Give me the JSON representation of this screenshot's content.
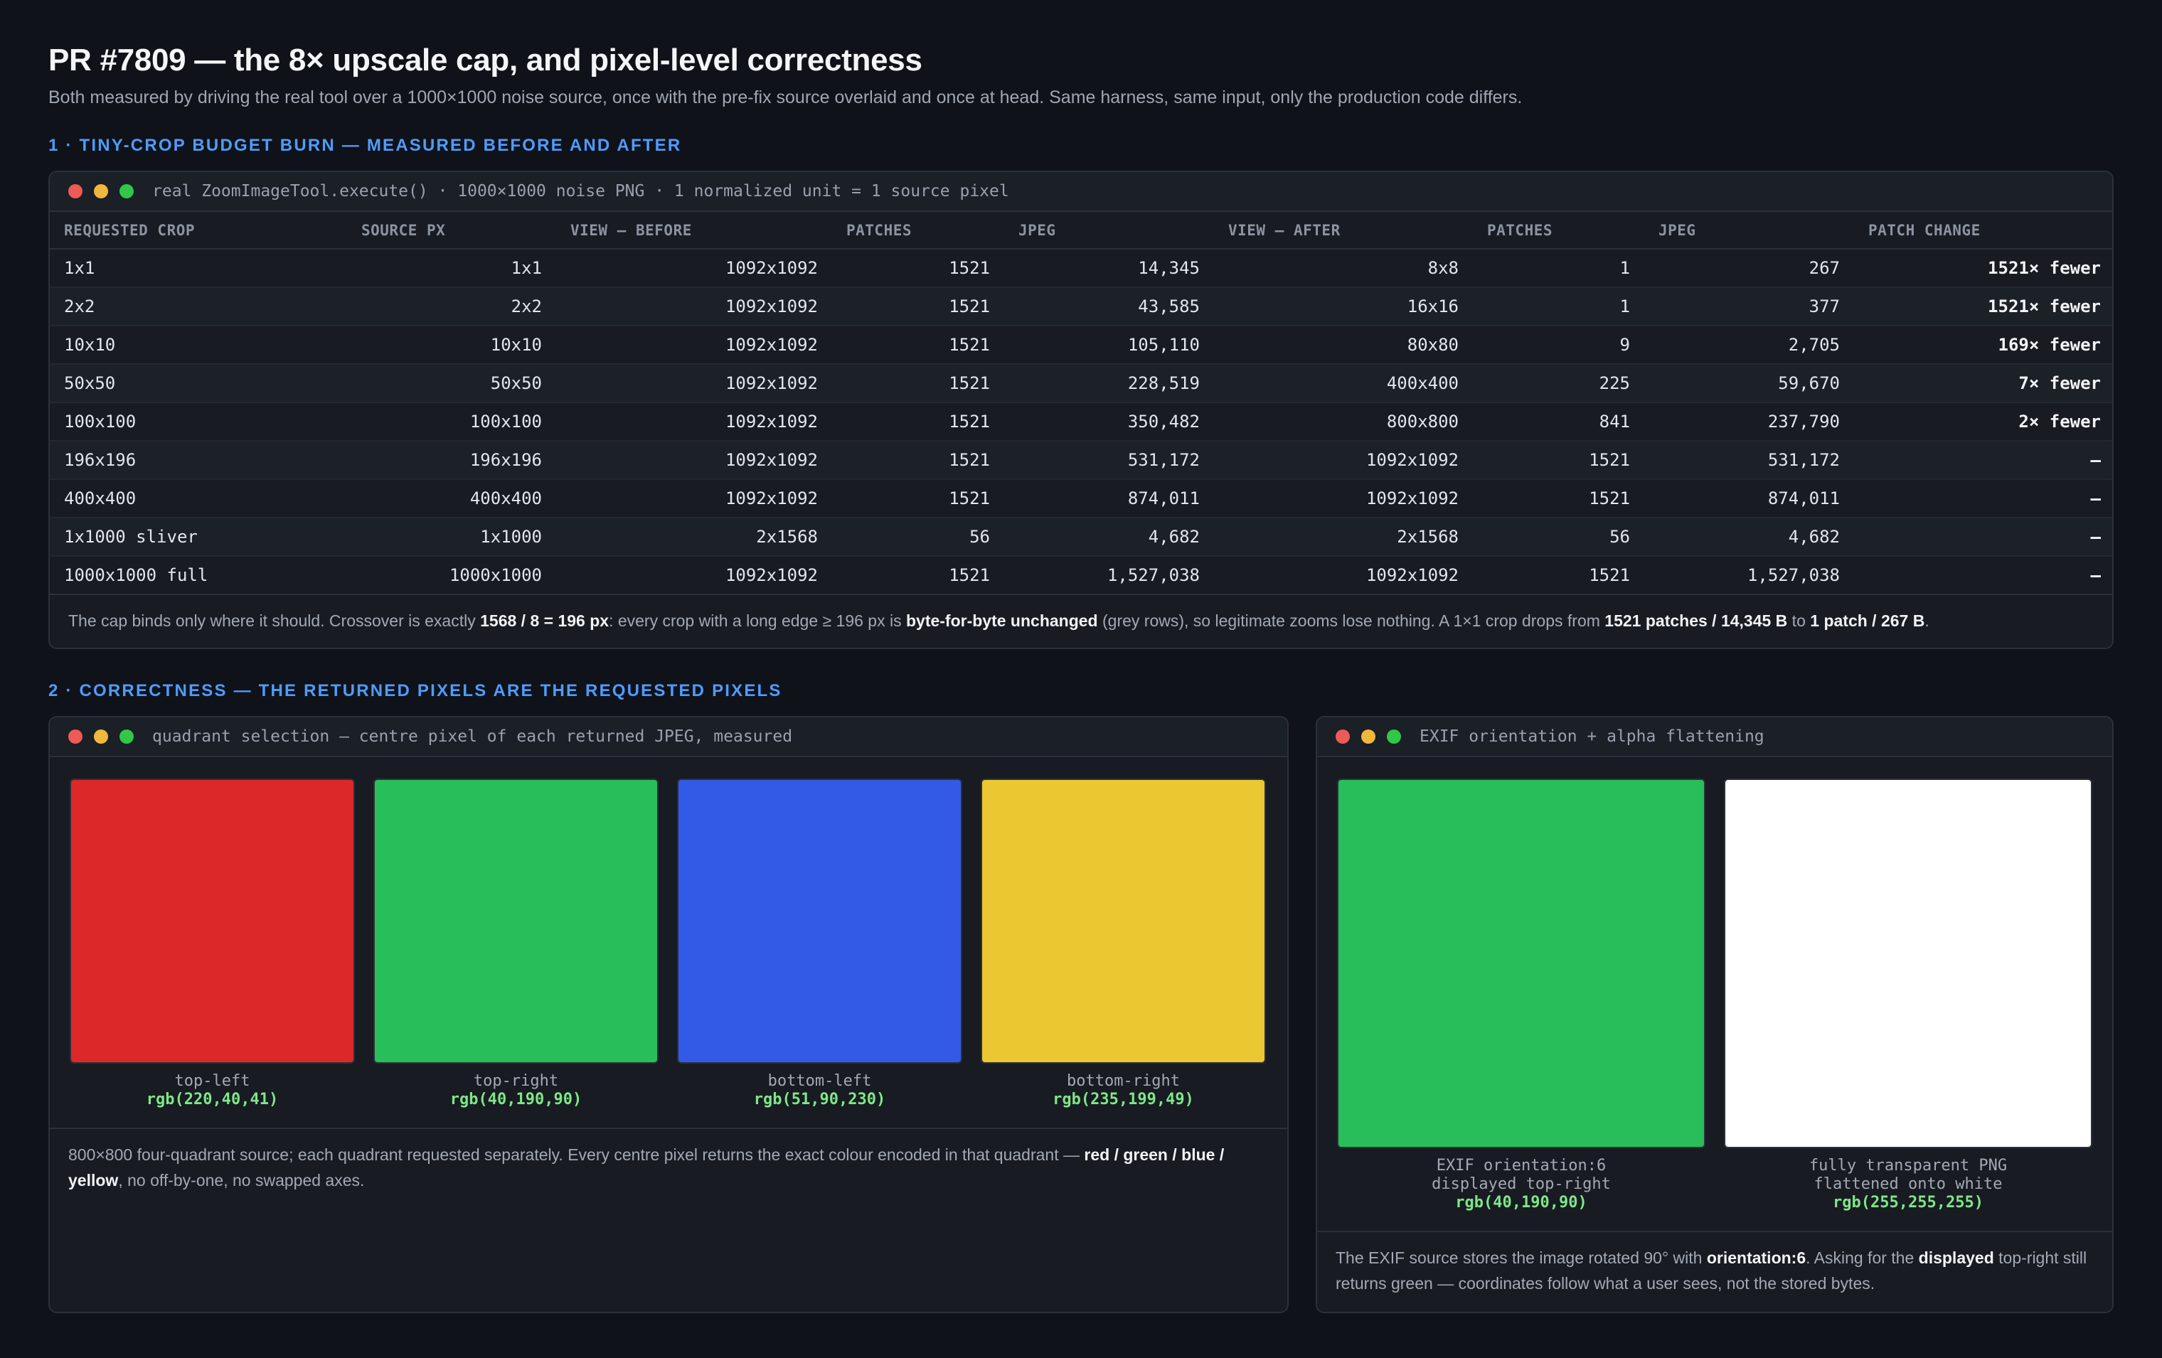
{
  "header": {
    "title": "PR #7809 — the 8× upscale cap, and pixel-level correctness",
    "subtitle": "Both measured by driving the real tool over a 1000×1000 noise source, once with the pre-fix source overlaid and once at head. Same harness, same input, only the production code differs."
  },
  "section1": {
    "title": "1 · TINY-CROP BUDGET BURN — MEASURED BEFORE AND AFTER",
    "panel_title": "real ZoomImageTool.execute() · 1000×1000 noise PNG · 1 normalized unit = 1 source pixel",
    "columns": [
      "REQUESTED CROP",
      "SOURCE PX",
      "VIEW — BEFORE",
      "PATCHES",
      "JPEG",
      "VIEW — AFTER",
      "PATCHES",
      "JPEG",
      "PATCH CHANGE"
    ],
    "rows": [
      [
        "1x1",
        "1x1",
        "1092x1092",
        "1521",
        "14,345",
        "8x8",
        "1",
        "267",
        "1521× fewer"
      ],
      [
        "2x2",
        "2x2",
        "1092x1092",
        "1521",
        "43,585",
        "16x16",
        "1",
        "377",
        "1521× fewer"
      ],
      [
        "10x10",
        "10x10",
        "1092x1092",
        "1521",
        "105,110",
        "80x80",
        "9",
        "2,705",
        "169× fewer"
      ],
      [
        "50x50",
        "50x50",
        "1092x1092",
        "1521",
        "228,519",
        "400x400",
        "225",
        "59,670",
        "7× fewer"
      ],
      [
        "100x100",
        "100x100",
        "1092x1092",
        "1521",
        "350,482",
        "800x800",
        "841",
        "237,790",
        "2× fewer"
      ],
      [
        "196x196",
        "196x196",
        "1092x1092",
        "1521",
        "531,172",
        "1092x1092",
        "1521",
        "531,172",
        "—"
      ],
      [
        "400x400",
        "400x400",
        "1092x1092",
        "1521",
        "874,011",
        "1092x1092",
        "1521",
        "874,011",
        "—"
      ],
      [
        "1x1000 sliver",
        "1x1000",
        "2x1568",
        "56",
        "4,682",
        "2x1568",
        "56",
        "4,682",
        "—"
      ],
      [
        "1000x1000 full",
        "1000x1000",
        "1092x1092",
        "1521",
        "1,527,038",
        "1092x1092",
        "1521",
        "1,527,038",
        "—"
      ]
    ],
    "note": {
      "t1": "The cap binds only where it should. Crossover is exactly ",
      "b1": "1568 / 8 = 196 px",
      "t2": ": every crop with a long edge ≥ 196 px is ",
      "b2": "byte-for-byte unchanged",
      "t3": " (grey rows), so legitimate zooms lose nothing. A 1×1 crop drops from ",
      "b3": "1521 patches / 14,345 B",
      "t4": " to ",
      "b4": "1 patch / 267 B",
      "t5": "."
    }
  },
  "section2": {
    "title": "2 · CORRECTNESS — THE RETURNED PIXELS ARE THE REQUESTED PIXELS",
    "quadrant_panel": {
      "title": "quadrant selection — centre pixel of each returned JPEG, measured",
      "swatches": [
        {
          "label": "top-left",
          "rgb": "rgb(220,40,41)",
          "color": "#dc2829"
        },
        {
          "label": "top-right",
          "rgb": "rgb(40,190,90)",
          "color": "#28be5a"
        },
        {
          "label": "bottom-left",
          "rgb": "rgb(51,90,230)",
          "color": "#335ae6"
        },
        {
          "label": "bottom-right",
          "rgb": "rgb(235,199,49)",
          "color": "#ebc731"
        }
      ],
      "note": {
        "t1": "800×800 four-quadrant source; each quadrant requested separately. Every centre pixel returns the exact colour encoded in that quadrant — ",
        "b1": "red / green / blue / yellow",
        "t2": ", no off-by-one, no swapped axes."
      }
    },
    "exif_panel": {
      "title": "EXIF orientation + alpha flattening",
      "swatches": [
        {
          "label1": "EXIF orientation:6",
          "label2": "displayed top-right",
          "rgb": "rgb(40,190,90)",
          "color": "#28be5a"
        },
        {
          "label1": "fully transparent PNG",
          "label2": "flattened onto white",
          "rgb": "rgb(255,255,255)",
          "color": "#ffffff"
        }
      ],
      "note": {
        "t1": "The EXIF source stores the image rotated 90° with ",
        "b1": "orientation:6",
        "t2": ". Asking for the ",
        "b2": "displayed",
        "t3": " top-right still returns green — coordinates follow what a user sees, not the stored bytes."
      }
    }
  }
}
